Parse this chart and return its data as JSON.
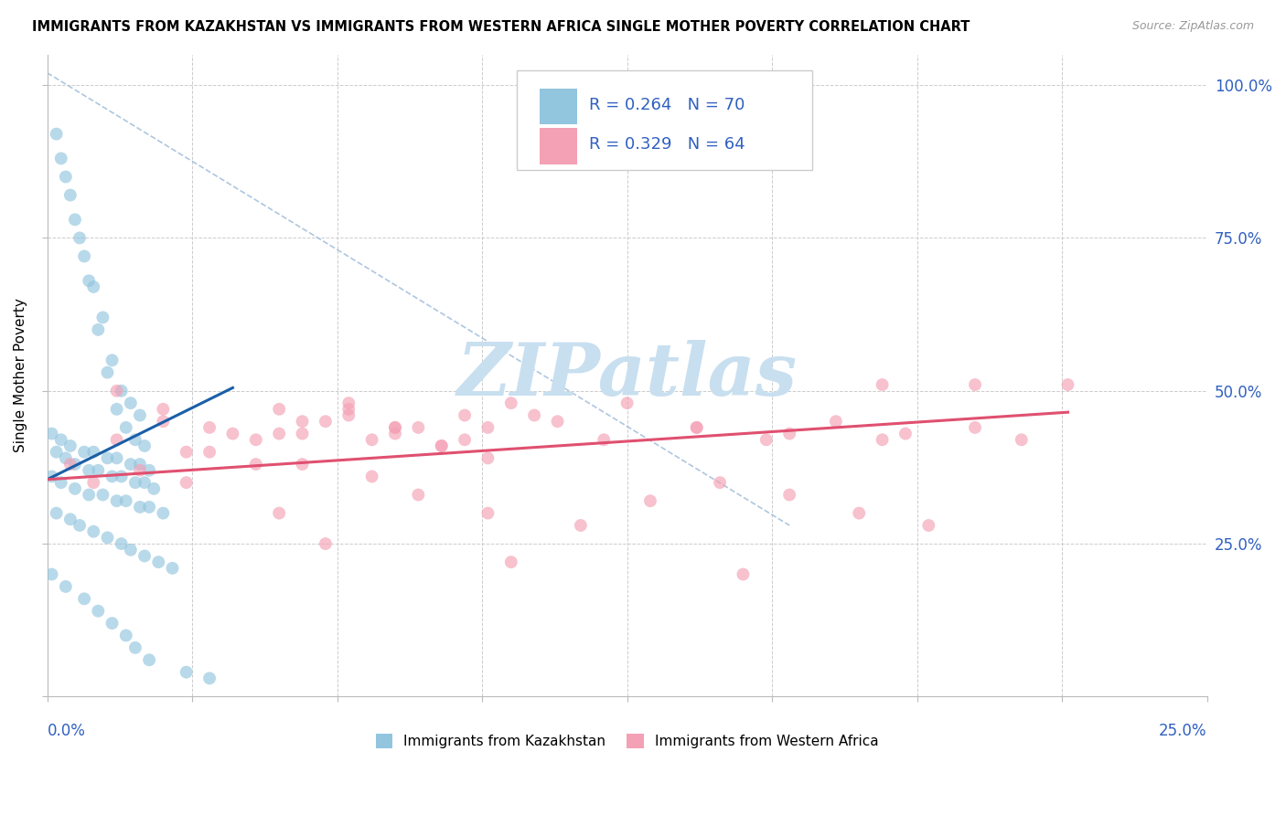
{
  "title": "IMMIGRANTS FROM KAZAKHSTAN VS IMMIGRANTS FROM WESTERN AFRICA SINGLE MOTHER POVERTY CORRELATION CHART",
  "source": "Source: ZipAtlas.com",
  "ylabel": "Single Mother Poverty",
  "xlim": [
    0.0,
    0.25
  ],
  "ylim": [
    0.0,
    1.05
  ],
  "yticks": [
    0.0,
    0.25,
    0.5,
    0.75,
    1.0
  ],
  "ytick_labels": [
    "",
    "25.0%",
    "50.0%",
    "75.0%",
    "100.0%"
  ],
  "legend_label1": "Immigrants from Kazakhstan",
  "legend_label2": "Immigrants from Western Africa",
  "R1": 0.264,
  "N1": 70,
  "R2": 0.329,
  "N2": 64,
  "color_kaz": "#92c5de",
  "color_waf": "#f4a0b5",
  "color_kaz_line": "#1a5fa8",
  "color_waf_line": "#e05070",
  "color_axis_text": "#3060c0",
  "watermark_color": "#c8dff0",
  "background_color": "#ffffff",
  "grid_color": "#cccccc",
  "diag_color": "#9ab8d8",
  "kaz_x": [
    0.003,
    0.005,
    0.006,
    0.008,
    0.01,
    0.012,
    0.014,
    0.016,
    0.018,
    0.02,
    0.002,
    0.004,
    0.007,
    0.009,
    0.011,
    0.013,
    0.015,
    0.017,
    0.019,
    0.021,
    0.001,
    0.003,
    0.005,
    0.008,
    0.01,
    0.013,
    0.015,
    0.018,
    0.02,
    0.022,
    0.002,
    0.004,
    0.006,
    0.009,
    0.011,
    0.014,
    0.016,
    0.019,
    0.021,
    0.023,
    0.001,
    0.003,
    0.006,
    0.009,
    0.012,
    0.015,
    0.017,
    0.02,
    0.022,
    0.025,
    0.002,
    0.005,
    0.007,
    0.01,
    0.013,
    0.016,
    0.018,
    0.021,
    0.024,
    0.027,
    0.001,
    0.004,
    0.008,
    0.011,
    0.014,
    0.017,
    0.019,
    0.022,
    0.03,
    0.035
  ],
  "kaz_y": [
    0.88,
    0.82,
    0.78,
    0.72,
    0.67,
    0.62,
    0.55,
    0.5,
    0.48,
    0.46,
    0.92,
    0.85,
    0.75,
    0.68,
    0.6,
    0.53,
    0.47,
    0.44,
    0.42,
    0.41,
    0.43,
    0.42,
    0.41,
    0.4,
    0.4,
    0.39,
    0.39,
    0.38,
    0.38,
    0.37,
    0.4,
    0.39,
    0.38,
    0.37,
    0.37,
    0.36,
    0.36,
    0.35,
    0.35,
    0.34,
    0.36,
    0.35,
    0.34,
    0.33,
    0.33,
    0.32,
    0.32,
    0.31,
    0.31,
    0.3,
    0.3,
    0.29,
    0.28,
    0.27,
    0.26,
    0.25,
    0.24,
    0.23,
    0.22,
    0.21,
    0.2,
    0.18,
    0.16,
    0.14,
    0.12,
    0.1,
    0.08,
    0.06,
    0.04,
    0.03
  ],
  "waf_x": [
    0.005,
    0.015,
    0.025,
    0.035,
    0.045,
    0.055,
    0.065,
    0.075,
    0.085,
    0.095,
    0.01,
    0.02,
    0.03,
    0.04,
    0.05,
    0.06,
    0.07,
    0.08,
    0.09,
    0.1,
    0.015,
    0.025,
    0.035,
    0.045,
    0.055,
    0.065,
    0.075,
    0.085,
    0.095,
    0.105,
    0.05,
    0.065,
    0.075,
    0.09,
    0.11,
    0.125,
    0.14,
    0.155,
    0.17,
    0.185,
    0.055,
    0.07,
    0.08,
    0.095,
    0.115,
    0.13,
    0.145,
    0.16,
    0.175,
    0.19,
    0.12,
    0.14,
    0.16,
    0.18,
    0.2,
    0.21,
    0.06,
    0.1,
    0.15,
    0.2,
    0.03,
    0.05,
    0.22,
    0.18
  ],
  "waf_y": [
    0.38,
    0.42,
    0.45,
    0.4,
    0.38,
    0.43,
    0.46,
    0.44,
    0.41,
    0.39,
    0.35,
    0.37,
    0.4,
    0.43,
    0.47,
    0.45,
    0.42,
    0.44,
    0.46,
    0.48,
    0.5,
    0.47,
    0.44,
    0.42,
    0.45,
    0.48,
    0.43,
    0.41,
    0.44,
    0.46,
    0.43,
    0.47,
    0.44,
    0.42,
    0.45,
    0.48,
    0.44,
    0.42,
    0.45,
    0.43,
    0.38,
    0.36,
    0.33,
    0.3,
    0.28,
    0.32,
    0.35,
    0.33,
    0.3,
    0.28,
    0.42,
    0.44,
    0.43,
    0.42,
    0.44,
    0.42,
    0.25,
    0.22,
    0.2,
    0.51,
    0.35,
    0.3,
    0.51,
    0.51
  ],
  "kaz_trend": [
    0.0,
    0.04
  ],
  "kaz_trend_y": [
    0.355,
    0.505
  ],
  "waf_trend": [
    0.0,
    0.22
  ],
  "waf_trend_y": [
    0.355,
    0.465
  ]
}
